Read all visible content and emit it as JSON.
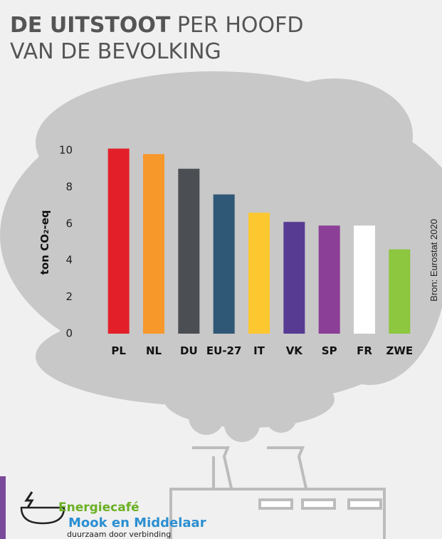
{
  "chart_data": {
    "type": "bar",
    "title": "DE UITSTOOT",
    "subtitle": "PER HOOFD VAN DE BEVOLKING",
    "y_label": "ton CO₂-eq",
    "source": "Bron: Eurostat 2020",
    "categories": [
      "PL",
      "NL",
      "DU",
      "EU-27",
      "IT",
      "VK",
      "SP",
      "FR",
      "ZWE"
    ],
    "values": [
      10.1,
      9.8,
      9.0,
      7.6,
      6.6,
      6.1,
      5.9,
      5.9,
      4.6
    ],
    "colors": [
      "#e3202a",
      "#f7982a",
      "#4b4e52",
      "#2f5876",
      "#fdc72f",
      "#573b93",
      "#8c3f97",
      "#ffffff",
      "#8dc63f"
    ],
    "ylim": [
      0,
      10
    ],
    "yticks": [
      0,
      2,
      4,
      6,
      8,
      10
    ],
    "grid": false
  },
  "logo": {
    "name": "Energiecafé",
    "place": "Mook en Middelaar",
    "tagline": "duurzaam door verbinding"
  }
}
